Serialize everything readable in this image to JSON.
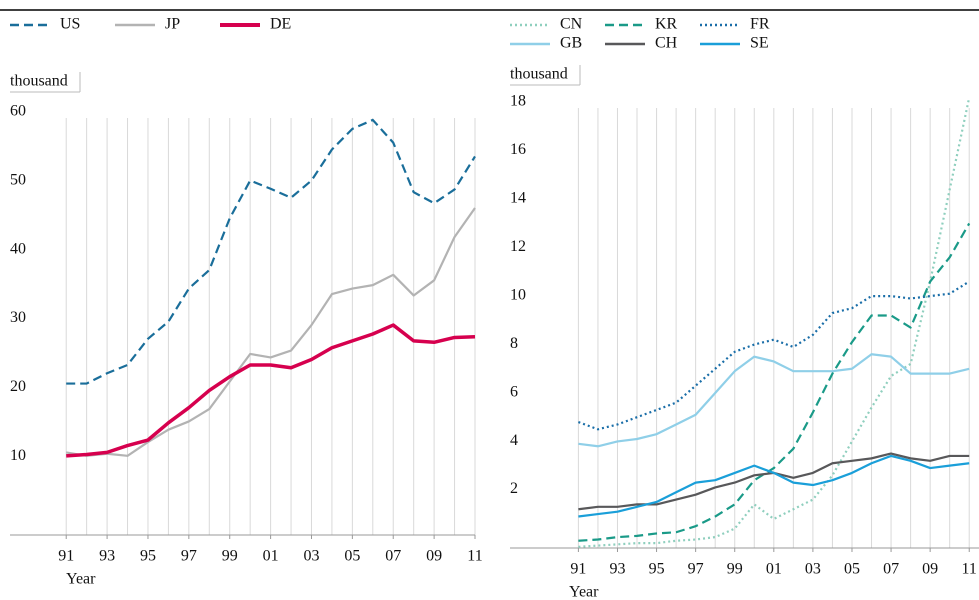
{
  "chart_data": [
    {
      "type": "line",
      "ylabel": "thousand",
      "xlabel": "Year",
      "x": [
        1991,
        1992,
        1993,
        1994,
        1995,
        1996,
        1997,
        1998,
        1999,
        2000,
        2001,
        2002,
        2003,
        2004,
        2005,
        2006,
        2007,
        2008,
        2009,
        2010,
        2011
      ],
      "xlim": [
        1988.25,
        2011
      ],
      "xticks": [
        {
          "value": 1991,
          "label": "91"
        },
        {
          "value": 1993,
          "label": "93"
        },
        {
          "value": 1995,
          "label": "95"
        },
        {
          "value": 1997,
          "label": "97"
        },
        {
          "value": 1999,
          "label": "99"
        },
        {
          "value": 2001,
          "label": "01"
        },
        {
          "value": 2003,
          "label": "03"
        },
        {
          "value": 2005,
          "label": "05"
        },
        {
          "value": 2007,
          "label": "07"
        },
        {
          "value": 2009,
          "label": "09"
        },
        {
          "value": 2011,
          "label": "11"
        }
      ],
      "ylim": [
        0,
        60
      ],
      "yticks": [
        10,
        20,
        30,
        40,
        50,
        60
      ],
      "grid": true,
      "series": [
        {
          "name": "US",
          "color": "#1a6e9a",
          "dash": "dashed",
          "values": [
            22,
            22,
            23.5,
            24.7,
            28.5,
            31,
            35.8,
            38.5,
            46,
            51.5,
            50.3,
            49,
            51.5,
            56,
            59,
            60.3,
            57,
            49.8,
            48.2,
            50.2,
            55
          ]
        },
        {
          "name": "JP",
          "color": "#b3b3b3",
          "dash": "solid",
          "values": [
            12,
            11.5,
            11.8,
            11.5,
            13.5,
            15.3,
            16.5,
            18.3,
            22.3,
            26.3,
            25.8,
            26.8,
            30.5,
            35,
            35.8,
            36.3,
            37.8,
            34.8,
            37,
            43.3,
            47.5
          ]
        },
        {
          "name": "DE",
          "color": "#d6004e",
          "dash": "solid",
          "values": [
            11.5,
            11.7,
            12,
            13,
            13.8,
            16.3,
            18.5,
            21,
            23,
            24.7,
            24.7,
            24.3,
            25.5,
            27.2,
            28.2,
            29.2,
            30.5,
            28.2,
            28,
            28.7,
            28.8
          ]
        }
      ]
    },
    {
      "type": "line",
      "ylabel": "thousand",
      "xlabel": "Year",
      "x": [
        1991,
        1992,
        1993,
        1994,
        1995,
        1996,
        1997,
        1998,
        1999,
        2000,
        2001,
        2002,
        2003,
        2004,
        2005,
        2006,
        2007,
        2008,
        2009,
        2010,
        2011
      ],
      "xlim": [
        1987.5,
        2011.5
      ],
      "xticks": [
        {
          "value": 1991,
          "label": "91"
        },
        {
          "value": 1993,
          "label": "93"
        },
        {
          "value": 1995,
          "label": "95"
        },
        {
          "value": 1997,
          "label": "97"
        },
        {
          "value": 1999,
          "label": "99"
        },
        {
          "value": 2001,
          "label": "01"
        },
        {
          "value": 2003,
          "label": "03"
        },
        {
          "value": 2005,
          "label": "05"
        },
        {
          "value": 2007,
          "label": "07"
        },
        {
          "value": 2009,
          "label": "09"
        },
        {
          "value": 2011,
          "label": "11"
        }
      ],
      "ylim": [
        0,
        18
      ],
      "yticks": [
        2,
        4,
        6,
        8,
        10,
        12,
        14,
        16,
        18
      ],
      "grid": true,
      "series": [
        {
          "name": "CN",
          "color": "#8fcfbe",
          "dash": "dotted",
          "values": [
            0.05,
            0.1,
            0.15,
            0.2,
            0.2,
            0.3,
            0.35,
            0.45,
            0.8,
            1.8,
            1.2,
            1.6,
            2.0,
            3.0,
            4.4,
            5.8,
            7.1,
            7.6,
            11.0,
            14.8,
            18.6
          ]
        },
        {
          "name": "KR",
          "color": "#1a9a88",
          "dash": "dashed",
          "values": [
            0.3,
            0.35,
            0.45,
            0.5,
            0.6,
            0.65,
            0.9,
            1.3,
            1.8,
            2.8,
            3.3,
            4.1,
            5.6,
            7.2,
            8.5,
            9.6,
            9.6,
            9.1,
            11.0,
            12.0,
            13.4
          ]
        },
        {
          "name": "FR",
          "color": "#1a6ea8",
          "dash": "dotted",
          "values": [
            5.2,
            4.9,
            5.1,
            5.4,
            5.7,
            6.0,
            6.7,
            7.4,
            8.1,
            8.4,
            8.6,
            8.3,
            8.8,
            9.7,
            9.9,
            10.4,
            10.4,
            10.3,
            10.4,
            10.5,
            11.0
          ]
        },
        {
          "name": "GB",
          "color": "#8fcfe8",
          "dash": "solid",
          "values": [
            4.3,
            4.2,
            4.4,
            4.5,
            4.7,
            5.1,
            5.5,
            6.4,
            7.3,
            7.9,
            7.7,
            7.3,
            7.3,
            7.3,
            7.4,
            8.0,
            7.9,
            7.2,
            7.2,
            7.2,
            7.4
          ]
        },
        {
          "name": "CH",
          "color": "#58585a",
          "dash": "solid",
          "values": [
            1.6,
            1.7,
            1.7,
            1.8,
            1.8,
            2.0,
            2.2,
            2.5,
            2.7,
            3.0,
            3.1,
            2.9,
            3.1,
            3.5,
            3.6,
            3.7,
            3.9,
            3.7,
            3.6,
            3.8,
            3.8
          ]
        },
        {
          "name": "SE",
          "color": "#1a9fd9",
          "dash": "solid",
          "values": [
            1.3,
            1.4,
            1.5,
            1.7,
            1.9,
            2.3,
            2.7,
            2.8,
            3.1,
            3.4,
            3.1,
            2.7,
            2.6,
            2.8,
            3.1,
            3.5,
            3.8,
            3.6,
            3.3,
            3.4,
            3.5
          ]
        }
      ]
    }
  ]
}
